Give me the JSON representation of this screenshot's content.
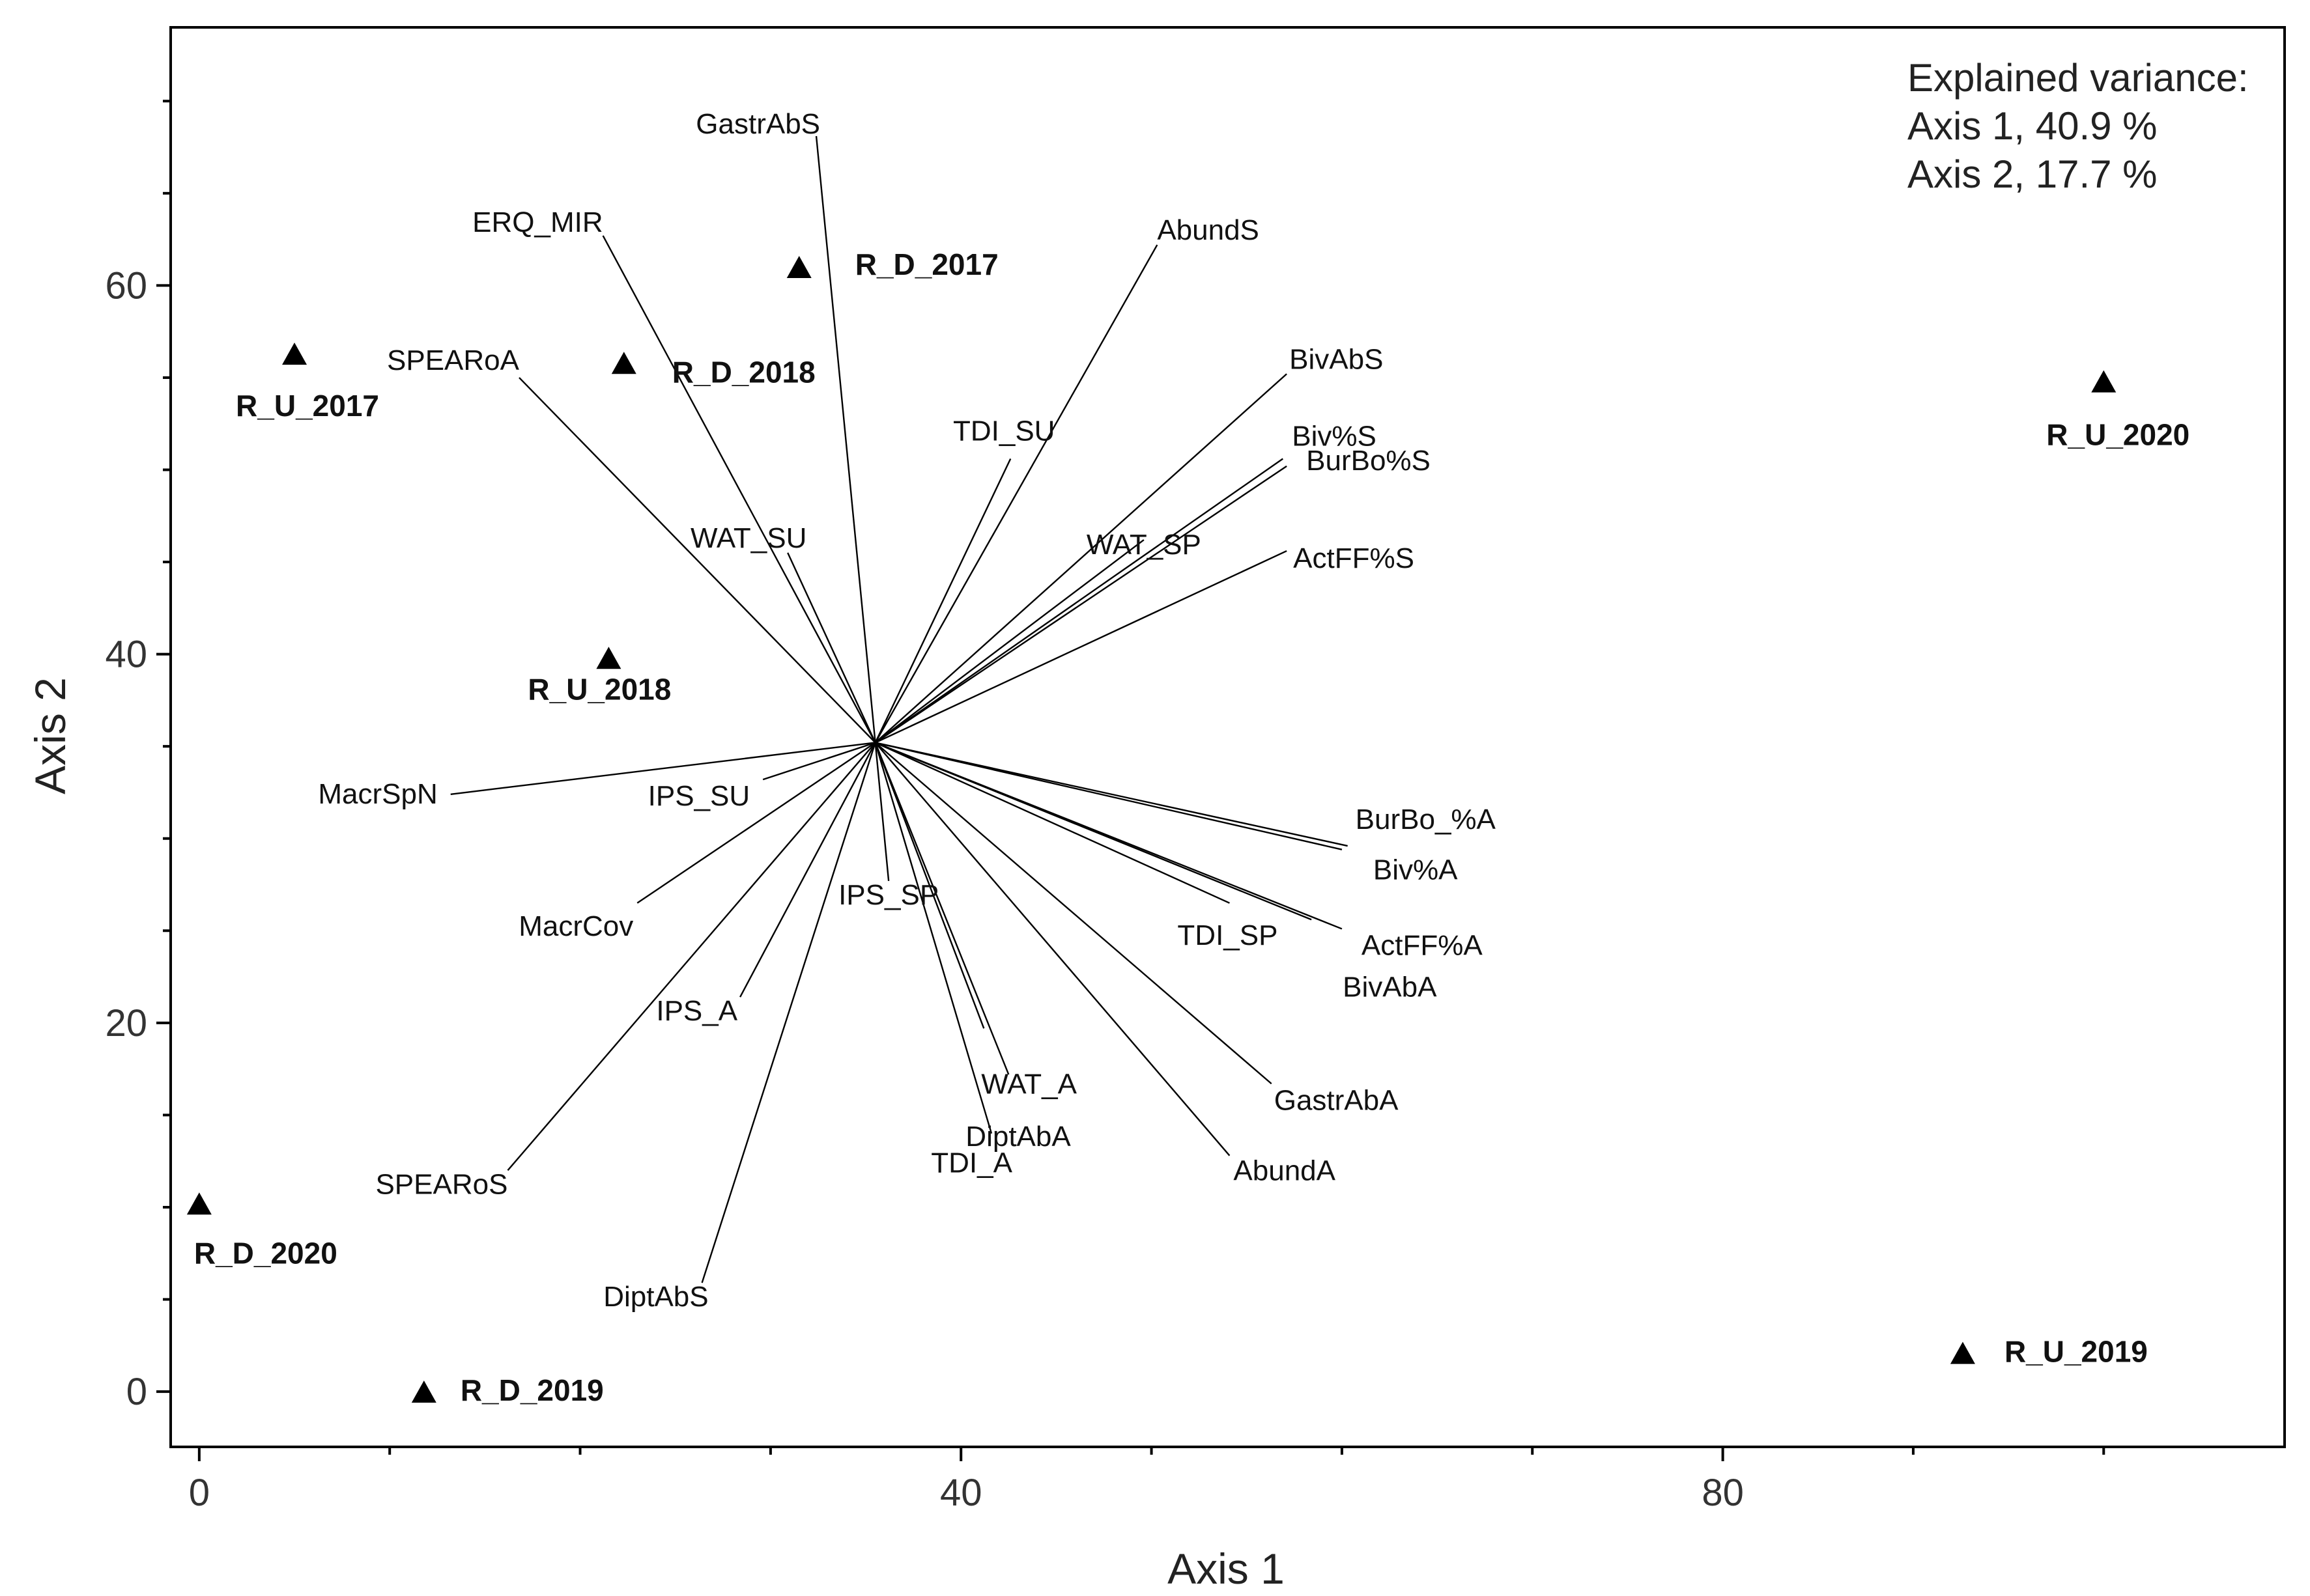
{
  "chart_data": {
    "type": "scatter",
    "subtype": "ordination-biplot",
    "xlabel": "Axis 1",
    "ylabel": "Axis 2",
    "xlim": [
      -1.5,
      109.5
    ],
    "ylim": [
      -3,
      74
    ],
    "xticks": [
      0,
      40,
      80
    ],
    "yticks": [
      0,
      20,
      40,
      60
    ],
    "legend": {
      "title": "Explained variance:",
      "lines": [
        "Axis 1, 40.9 %",
        "Axis 2, 17.7 %"
      ]
    },
    "vector_origin": [
      35.5,
      35.2
    ],
    "sites": [
      {
        "name": "R_U_2017",
        "x": 5.0,
        "y": 56.3
      },
      {
        "name": "R_D_2018",
        "x": 22.3,
        "y": 55.8
      },
      {
        "name": "R_D_2017",
        "x": 31.5,
        "y": 61.0
      },
      {
        "name": "R_U_2018",
        "x": 21.5,
        "y": 39.8
      },
      {
        "name": "R_U_2020",
        "x": 100.0,
        "y": 54.8
      },
      {
        "name": "R_D_2020",
        "x": 0.0,
        "y": 10.2
      },
      {
        "name": "R_D_2019",
        "x": 11.8,
        "y": 0.0
      },
      {
        "name": "R_U_2019",
        "x": 92.6,
        "y": 2.1
      }
    ],
    "vectors": [
      {
        "name": "GastrAbS",
        "x": 32.4,
        "y": 68.1
      },
      {
        "name": "ERQ_MIR",
        "x": 21.2,
        "y": 62.7
      },
      {
        "name": "AbundS",
        "x": 50.3,
        "y": 62.2
      },
      {
        "name": "SPEARoA",
        "x": 16.8,
        "y": 55.0
      },
      {
        "name": "TDI_SU",
        "x": 42.6,
        "y": 50.6
      },
      {
        "name": "BivAbS",
        "x": 57.1,
        "y": 55.2
      },
      {
        "name": "Biv%S",
        "x": 56.9,
        "y": 50.6
      },
      {
        "name": "BurBo%S",
        "x": 57.1,
        "y": 50.2
      },
      {
        "name": "WAT_SP",
        "x": 49.6,
        "y": 46.2
      },
      {
        "name": "WAT_SU",
        "x": 30.9,
        "y": 45.5
      },
      {
        "name": "ActFF%S",
        "x": 57.1,
        "y": 45.6
      },
      {
        "name": "MacrSpN",
        "x": 13.2,
        "y": 32.4
      },
      {
        "name": "IPS_SU",
        "x": 29.6,
        "y": 33.2
      },
      {
        "name": "BurBo_%A",
        "x": 60.3,
        "y": 29.6
      },
      {
        "name": "Biv%A",
        "x": 60.0,
        "y": 29.4
      },
      {
        "name": "IPS_SP",
        "x": 36.2,
        "y": 27.7
      },
      {
        "name": "MacrCov",
        "x": 23.0,
        "y": 26.5
      },
      {
        "name": "ActFF%A",
        "x": 60.0,
        "y": 25.1
      },
      {
        "name": "BivAbA",
        "x": 58.4,
        "y": 25.6
      },
      {
        "name": "TDI_SP",
        "x": 54.1,
        "y": 26.5
      },
      {
        "name": "IPS_A",
        "x": 28.4,
        "y": 21.4
      },
      {
        "name": "WAT_A",
        "x": 41.2,
        "y": 19.7
      },
      {
        "name": "GastrAbA",
        "x": 56.3,
        "y": 16.7
      },
      {
        "name": "DiptAbA",
        "x": 42.5,
        "y": 17.2
      },
      {
        "name": "TDI_A",
        "x": 41.6,
        "y": 14.0
      },
      {
        "name": "AbundA",
        "x": 54.1,
        "y": 12.8
      },
      {
        "name": "SPEARoS",
        "x": 16.2,
        "y": 12.0
      },
      {
        "name": "DiptAbS",
        "x": 26.4,
        "y": 5.9
      }
    ]
  }
}
